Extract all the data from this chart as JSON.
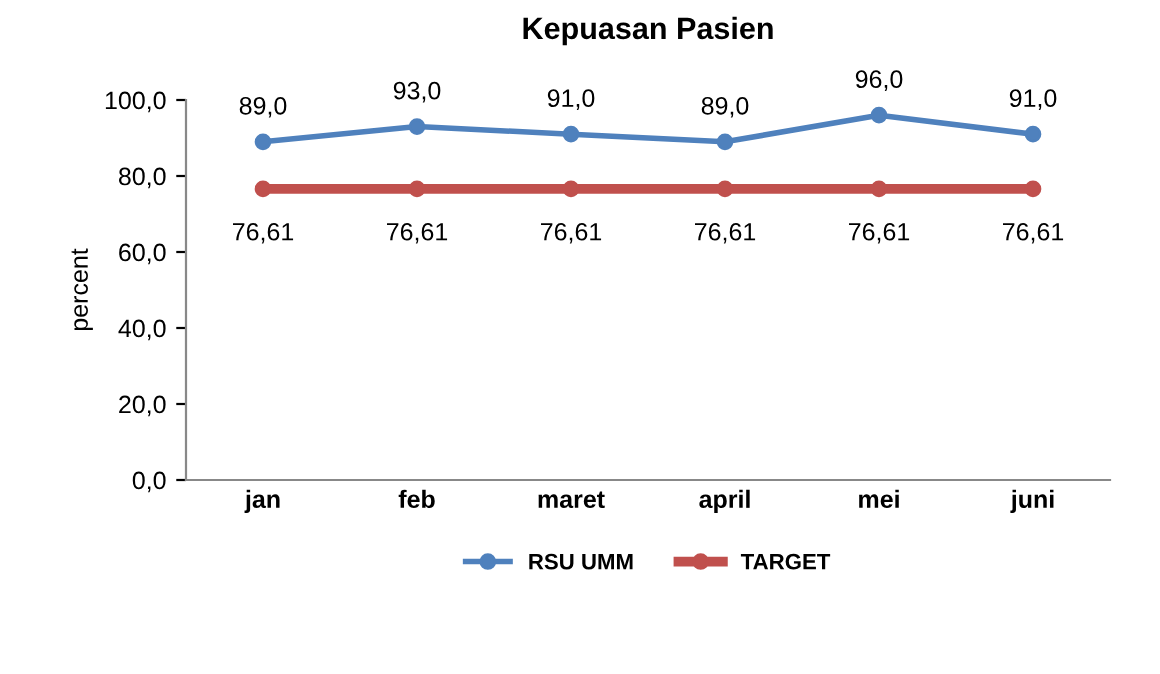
{
  "chart_data": {
    "type": "line",
    "title": "Kepuasan Pasien",
    "ylabel": "percent",
    "categories": [
      "jan",
      "feb",
      "maret",
      "april",
      "mei",
      "juni"
    ],
    "series": [
      {
        "name": "RSU UMM",
        "color": "#4f81bd",
        "values": [
          89.0,
          93.0,
          91.0,
          89.0,
          96.0,
          91.0
        ],
        "value_labels": [
          "89,0",
          "93,0",
          "91,0",
          "89,0",
          "96,0",
          "91,0"
        ]
      },
      {
        "name": "TARGET",
        "color": "#c0504d",
        "values": [
          76.61,
          76.61,
          76.61,
          76.61,
          76.61,
          76.61
        ],
        "value_labels": [
          "76,61",
          "76,61",
          "76,61",
          "76,61",
          "76,61",
          "76,61"
        ]
      }
    ],
    "ylim": [
      0,
      100
    ],
    "yticks": [
      {
        "value": 0,
        "label": "0,0"
      },
      {
        "value": 20,
        "label": "20,0"
      },
      {
        "value": 40,
        "label": "40,0"
      },
      {
        "value": 60,
        "label": "60,0"
      },
      {
        "value": 80,
        "label": "80,0"
      },
      {
        "value": 100,
        "label": "100,0"
      }
    ],
    "grid": false,
    "legend": "bottom",
    "marker": "circle",
    "line_style": "solid"
  }
}
